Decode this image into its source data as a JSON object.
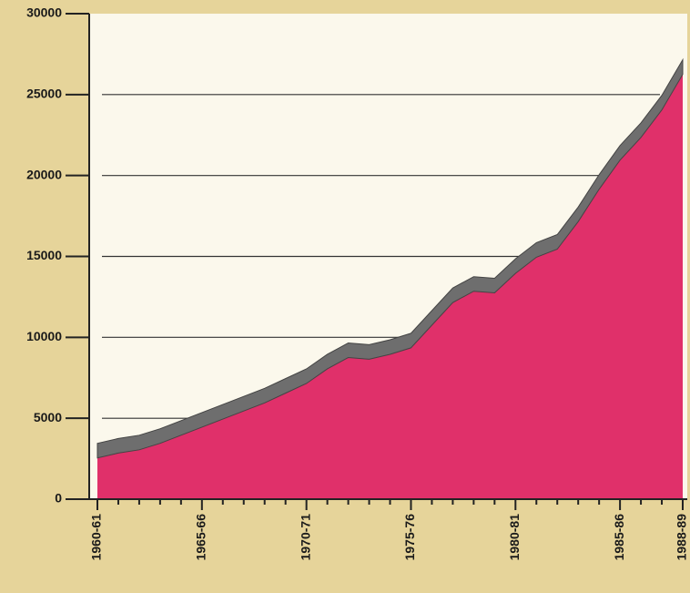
{
  "chart_data": {
    "type": "area",
    "categories": [
      "1960-61",
      null,
      null,
      null,
      null,
      "1965-66",
      null,
      null,
      null,
      null,
      "1970-71",
      null,
      null,
      null,
      null,
      "1975-76",
      null,
      null,
      null,
      null,
      "1980-81",
      null,
      null,
      null,
      null,
      "1985-86",
      null,
      null,
      "1988-89"
    ],
    "values": [
      3000,
      3300,
      3500,
      3900,
      4400,
      4900,
      5400,
      5900,
      6400,
      7000,
      7600,
      8500,
      9200,
      9100,
      9400,
      9800,
      11200,
      12600,
      13300,
      13200,
      14400,
      15400,
      15900,
      17600,
      19600,
      21400,
      22800,
      24500,
      26700
    ],
    "color": "#e0306a",
    "edge_color": "#6e6e6e",
    "ylim": [
      0,
      30000
    ],
    "yticks": [
      0,
      5000,
      10000,
      15000,
      20000,
      25000,
      30000
    ],
    "grid": true
  }
}
